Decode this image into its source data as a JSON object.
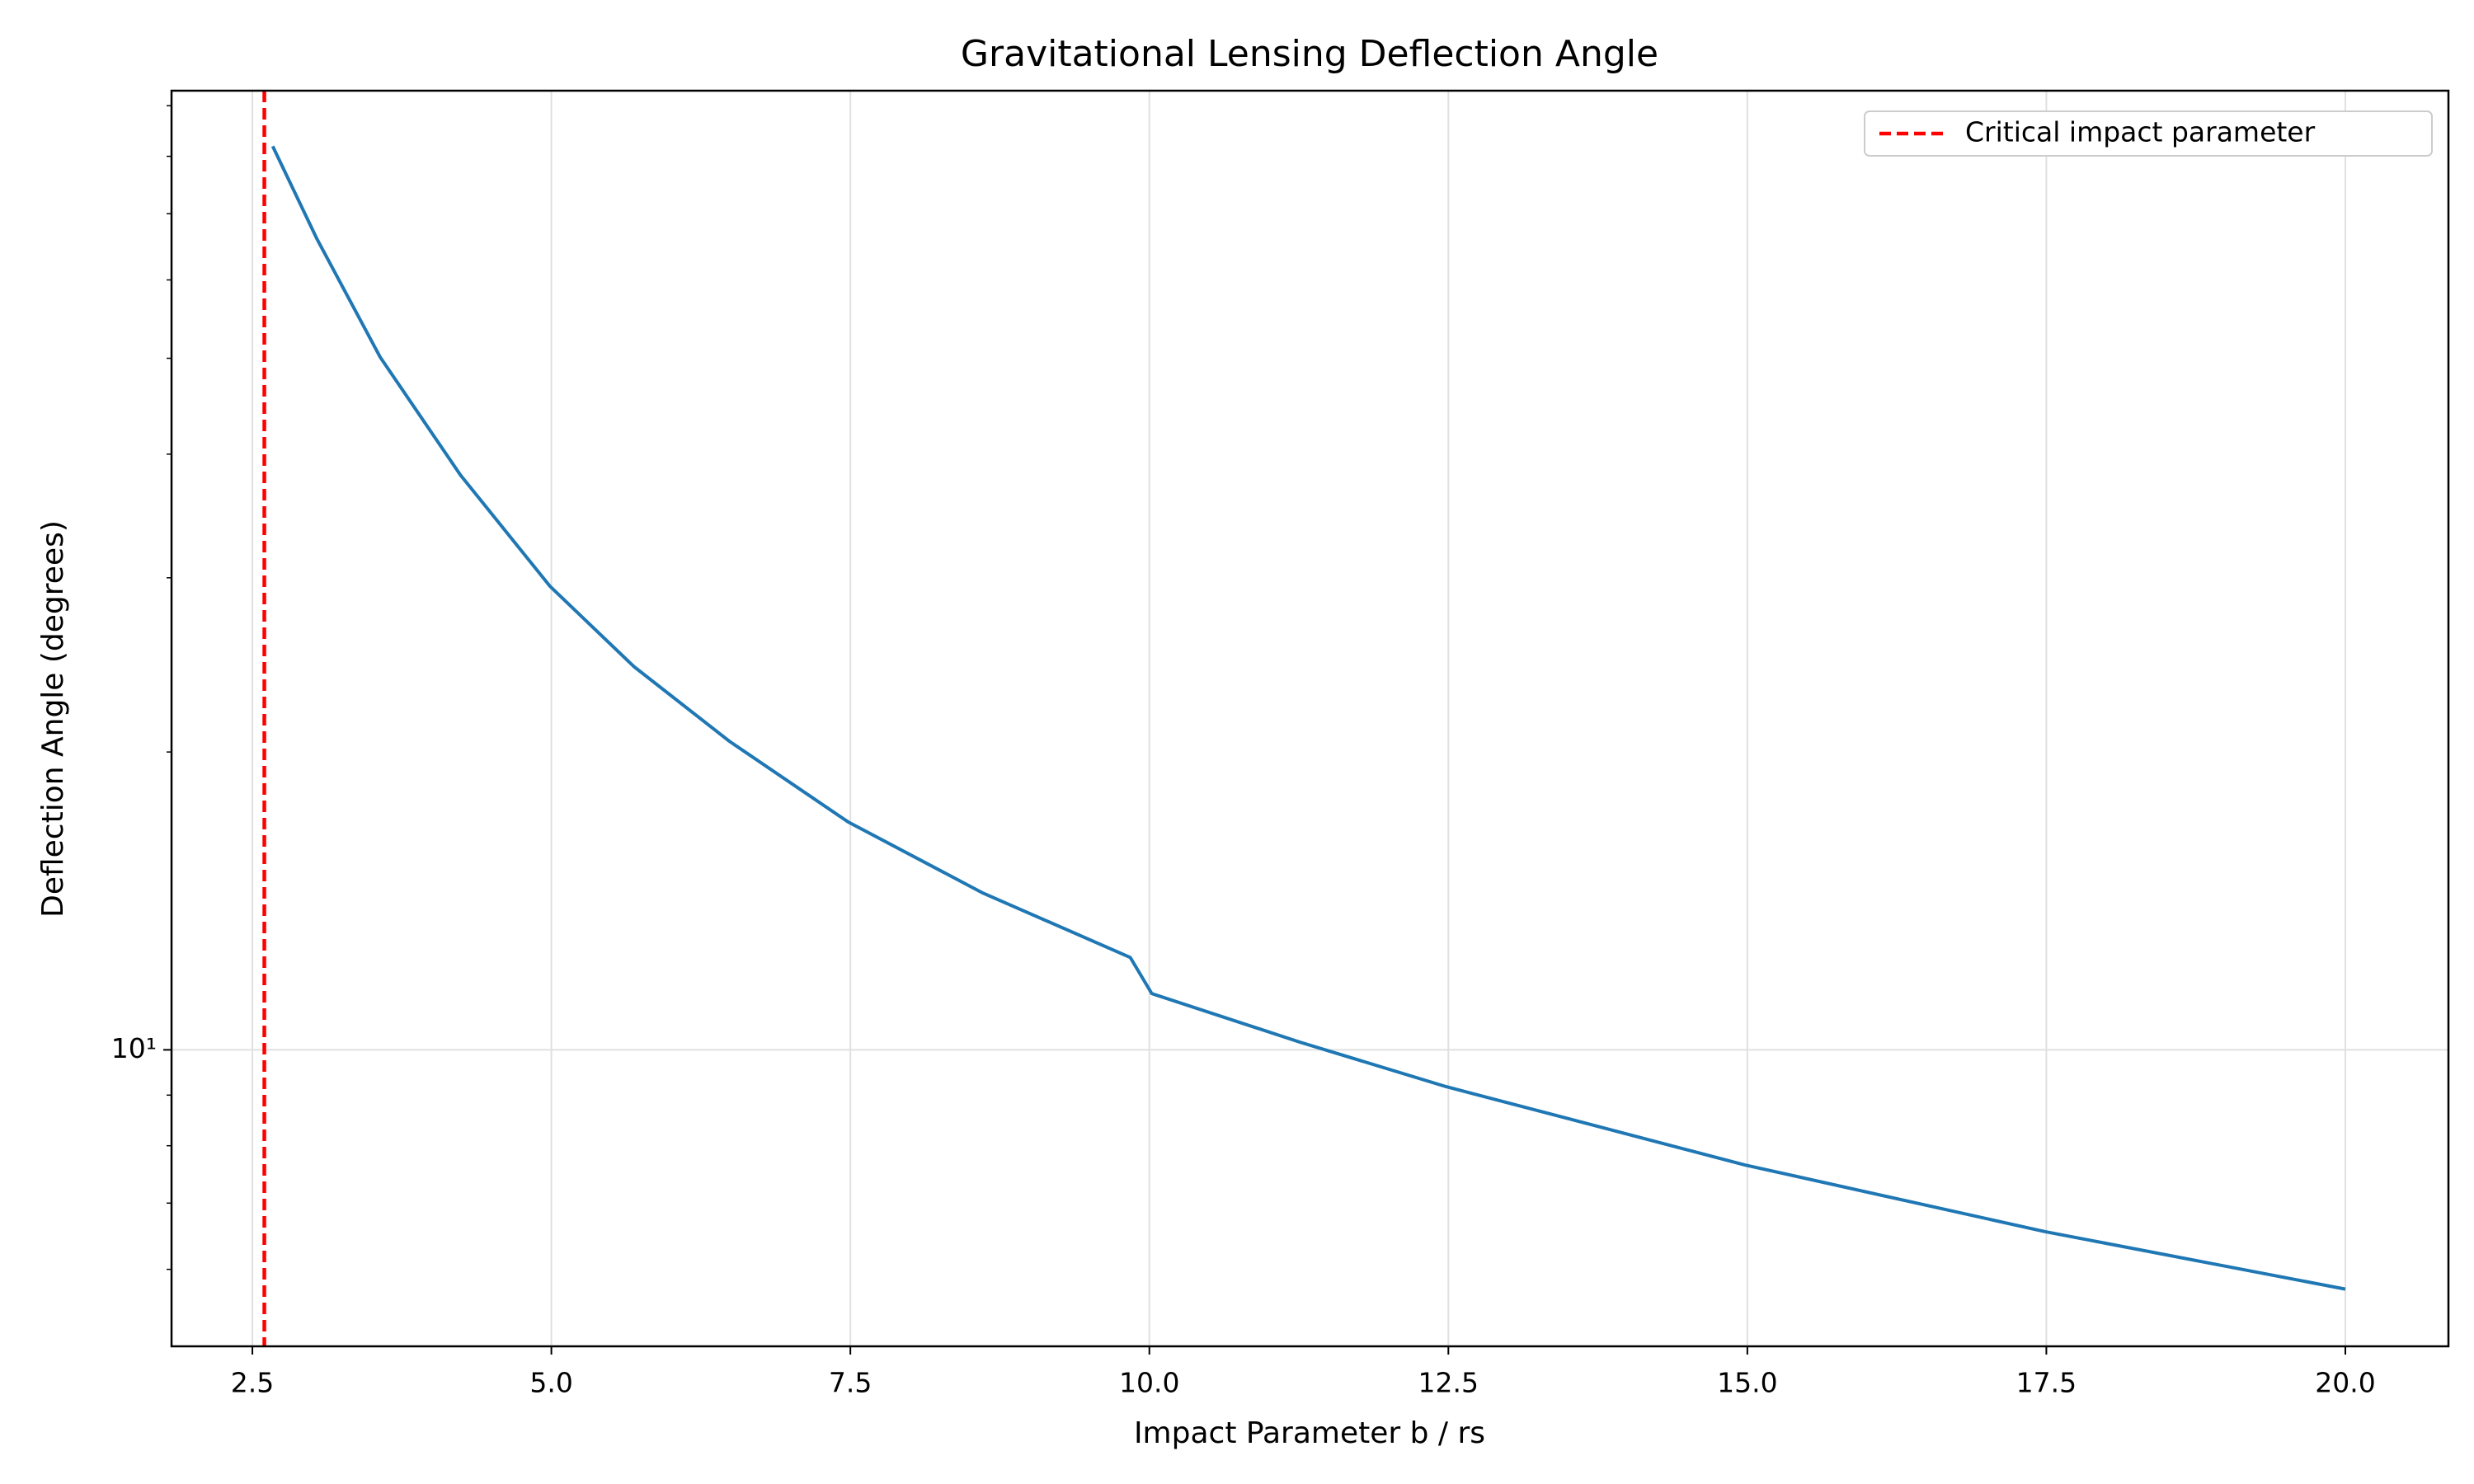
{
  "chart_data": {
    "type": "line",
    "title": "Gravitational Lensing Deflection Angle",
    "xlabel": "Impact Parameter b / rs",
    "ylabel": "Deflection Angle (degrees)",
    "x": [
      2.67,
      3.04,
      3.57,
      4.24,
      4.99,
      5.69,
      6.49,
      7.48,
      8.61,
      9.84,
      10.02,
      11.26,
      12.48,
      14.98,
      17.49,
      20.0
    ],
    "series": [
      {
        "color": "#1f77b4",
        "values": [
          81.9,
          66,
          50.1,
          38.1,
          29.4,
          24.4,
          20.5,
          17.0,
          14.4,
          12.4,
          11.4,
          10.18,
          9.18,
          7.65,
          6.55,
          5.73
        ]
      }
    ],
    "vlines": [
      {
        "name": "Critical impact parameter",
        "x": 2.6,
        "color": "#ff0000",
        "style": "dashed"
      }
    ],
    "xlim": [
      1.824,
      20.862
    ],
    "xticks": [
      2.5,
      {
        "value": 5,
        "label": "5.0"
      },
      7.5,
      {
        "value": 10,
        "label": "10.0"
      },
      12.5,
      {
        "value": 15,
        "label": "15.0"
      },
      17.5,
      {
        "value": 20,
        "label": "20.0"
      }
    ],
    "ylim": [
      5.016,
      93.2
    ],
    "yscale": "log",
    "yticks": [
      {
        "value": 10,
        "label": "10¹"
      }
    ],
    "yminorticks": [
      6,
      7,
      8,
      9,
      20,
      30,
      40,
      50,
      60,
      70,
      80,
      90
    ],
    "grid": true,
    "legend_loc": "upper right"
  }
}
